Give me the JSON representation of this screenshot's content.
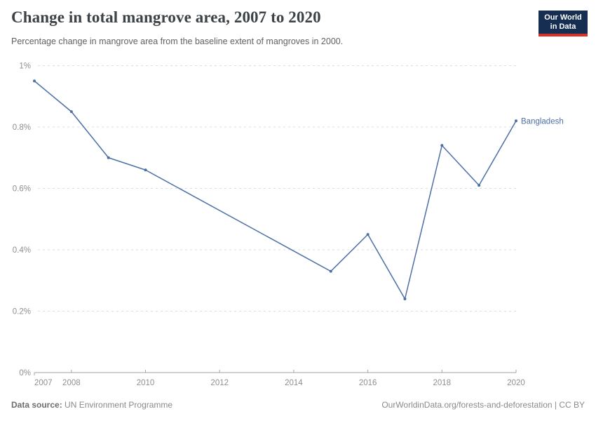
{
  "header": {
    "title": "Change in total mangrove area, 2007 to 2020",
    "subtitle": "Percentage change in mangrove area from the baseline extent of mangroves in 2000.",
    "logo": {
      "line1": "Our World",
      "line2": "in Data"
    }
  },
  "chart_data": {
    "type": "line",
    "title": "Change in total mangrove area, 2007 to 2020",
    "series": [
      {
        "name": "Bangladesh",
        "points": [
          [
            2007,
            0.95
          ],
          [
            2008,
            0.85
          ],
          [
            2009,
            0.7
          ],
          [
            2010,
            0.66
          ],
          [
            2015,
            0.33
          ],
          [
            2016,
            0.45
          ],
          [
            2017,
            0.24
          ],
          [
            2018,
            0.74
          ],
          [
            2019,
            0.61
          ],
          [
            2020,
            0.82
          ]
        ]
      }
    ],
    "xlabel": "",
    "ylabel": "",
    "xlim": [
      2007,
      2020
    ],
    "ylim": [
      0,
      1
    ],
    "x_ticks": [
      2007,
      2008,
      2010,
      2012,
      2014,
      2016,
      2018,
      2020
    ],
    "y_ticks": [
      {
        "value": 0,
        "label": "0%"
      },
      {
        "value": 0.2,
        "label": "0.2%"
      },
      {
        "value": 0.4,
        "label": "0.4%"
      },
      {
        "value": 0.6,
        "label": "0.6%"
      },
      {
        "value": 0.8,
        "label": "0.8%"
      },
      {
        "value": 1,
        "label": "1%"
      }
    ],
    "grid": true,
    "legend_position": "end-of-line",
    "line_color": "#4C6FA5",
    "grid_color": "#dedede",
    "axis_color": "#a3a3a3",
    "markers": true
  },
  "footer": {
    "datasource_label": "Data source:",
    "datasource_value": "UN Environment Programme",
    "attribution": "OurWorldinData.org/forests-and-deforestation | CC BY"
  }
}
